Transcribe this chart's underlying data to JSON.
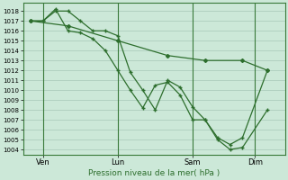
{
  "title": "Pression niveau de la mer( hPa )",
  "bg_color": "#cce8d8",
  "line_color": "#2d6e2d",
  "grid_color": "#a8c8b8",
  "ylim": [
    1003.5,
    1018.8
  ],
  "yticks": [
    1004,
    1005,
    1006,
    1007,
    1008,
    1009,
    1010,
    1011,
    1012,
    1013,
    1014,
    1015,
    1016,
    1017,
    1018
  ],
  "xtick_labels": [
    "Ven",
    "Lun",
    "Sam",
    "Dim"
  ],
  "xtick_positions": [
    0.5,
    3.5,
    6.5,
    9.0
  ],
  "xlim": [
    -0.3,
    10.2
  ],
  "series1_x": [
    0.0,
    0.5,
    1.0,
    1.5,
    2.0,
    2.5,
    3.0,
    3.5,
    4.0,
    4.5,
    5.0,
    5.5,
    6.0,
    6.5,
    7.0,
    7.5,
    8.0,
    8.5,
    9.5
  ],
  "series1_y": [
    1017.0,
    1017.0,
    1018.0,
    1018.0,
    1017.0,
    1016.0,
    1016.0,
    1015.5,
    1011.8,
    1010.0,
    1008.0,
    1011.0,
    1010.3,
    1008.3,
    1007.0,
    1005.0,
    1004.0,
    1004.2,
    1008.0
  ],
  "series2_x": [
    0.0,
    0.5,
    1.0,
    1.5,
    2.0,
    2.5,
    3.0,
    3.5,
    4.0,
    4.5,
    5.0,
    5.5,
    6.0,
    6.5,
    7.0,
    7.5,
    8.0,
    8.5,
    9.5
  ],
  "series2_y": [
    1017.0,
    1017.0,
    1018.2,
    1016.0,
    1015.8,
    1015.2,
    1014.0,
    1012.0,
    1010.0,
    1008.2,
    1010.5,
    1010.8,
    1009.5,
    1007.0,
    1007.0,
    1005.2,
    1004.5,
    1005.2,
    1012.0
  ],
  "series3_x": [
    0.0,
    1.5,
    3.5,
    5.5,
    7.0,
    8.5,
    9.5
  ],
  "series3_y": [
    1017.0,
    1016.5,
    1015.0,
    1013.5,
    1013.0,
    1013.0,
    1012.0
  ]
}
